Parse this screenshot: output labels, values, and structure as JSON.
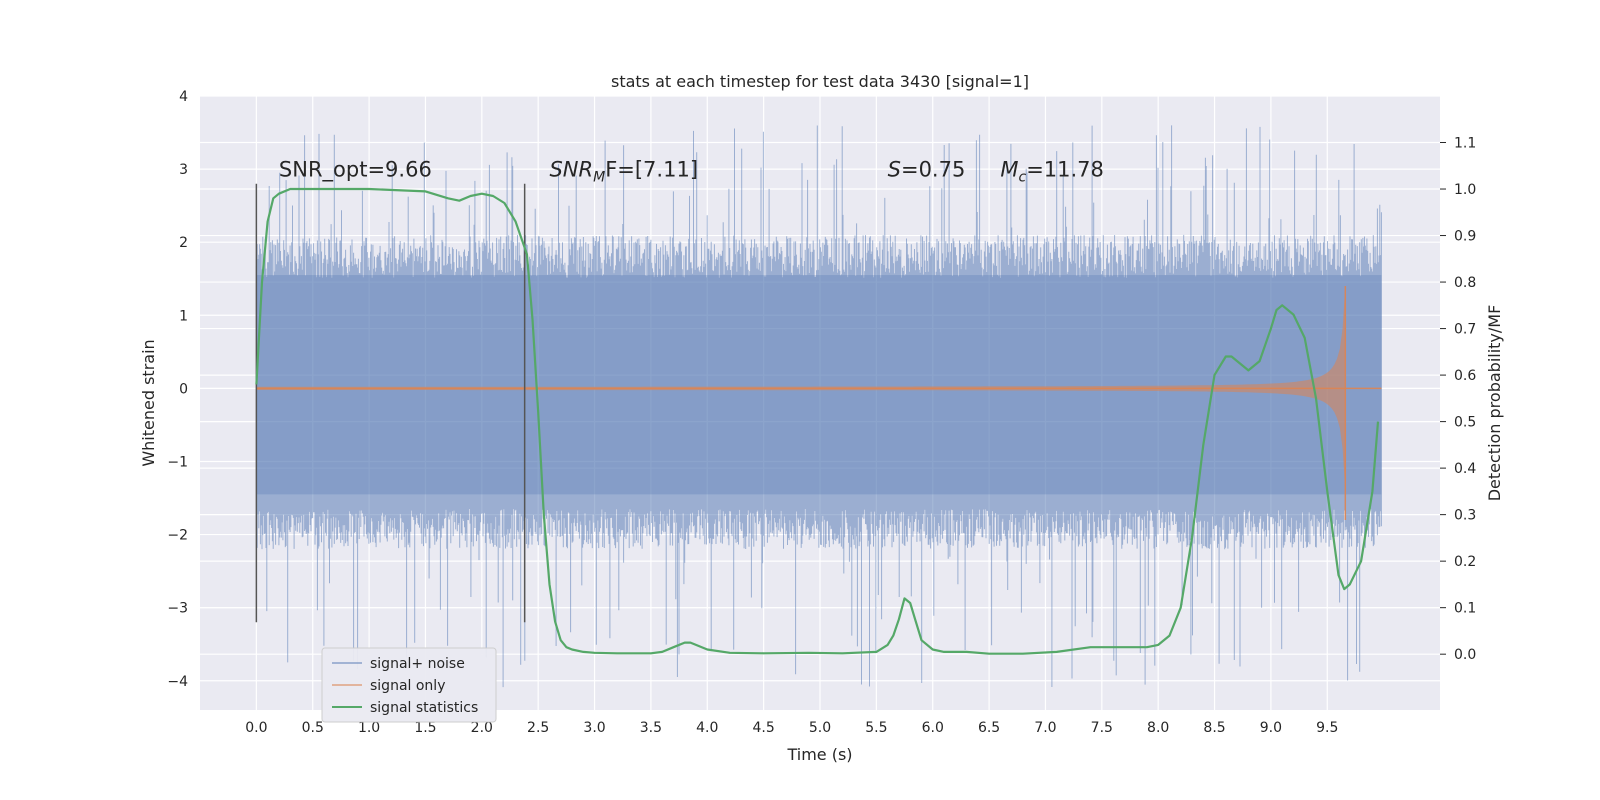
{
  "chart_data": {
    "type": "line",
    "title": "stats at each timestep for test data 3430 [signal=1]",
    "xlabel": "Time (s)",
    "ylabel": "Whitened strain",
    "y2label": "Detection probability/MF",
    "xlim": [
      -0.5,
      10.5
    ],
    "ylim": [
      -4.4,
      4.0
    ],
    "y2lim": [
      -0.12,
      1.2
    ],
    "xticks": [
      "0.0",
      "0.5",
      "1.0",
      "1.5",
      "2.0",
      "2.5",
      "3.0",
      "3.5",
      "4.0",
      "4.5",
      "5.0",
      "5.5",
      "6.0",
      "6.5",
      "7.0",
      "7.5",
      "8.0",
      "8.5",
      "9.0",
      "9.5"
    ],
    "yticks": [
      "4",
      "3",
      "2",
      "1",
      "0",
      "−1",
      "−2",
      "−3",
      "−4"
    ],
    "y2ticks": [
      "1.1",
      "1.0",
      "0.9",
      "0.8",
      "0.7",
      "0.6",
      "0.5",
      "0.4",
      "0.3",
      "0.2",
      "0.1",
      "0.0"
    ],
    "grid": true,
    "legend_position": "lower-left",
    "colors": {
      "background": "#eaeaf2",
      "grid": "#ffffff",
      "noise": "#4c72b0",
      "signal": "#dd8452",
      "stats": "#55a868",
      "vline": "#555555"
    },
    "series": [
      {
        "name": "signal+ noise",
        "style": "dense noise band",
        "x_range": [
          0.0,
          9.98
        ],
        "band_min": -2.2,
        "band_max": 2.1,
        "spike_range": [
          -4.1,
          3.6
        ]
      },
      {
        "name": "signal only",
        "style": "chirp",
        "x_range": [
          0.0,
          9.66
        ],
        "peak_amplitude": 1.4,
        "merger_time": 9.66
      },
      {
        "name": "signal statistics",
        "axis": "right",
        "x": [
          0.0,
          0.05,
          0.1,
          0.15,
          0.2,
          0.3,
          0.5,
          1.0,
          1.5,
          1.7,
          1.8,
          1.9,
          2.0,
          2.1,
          2.2,
          2.3,
          2.4,
          2.45,
          2.5,
          2.55,
          2.6,
          2.65,
          2.7,
          2.75,
          2.8,
          2.9,
          3.0,
          3.2,
          3.5,
          3.6,
          3.7,
          3.8,
          3.85,
          3.9,
          4.0,
          4.2,
          4.5,
          4.9,
          5.2,
          5.5,
          5.6,
          5.65,
          5.7,
          5.75,
          5.8,
          5.85,
          5.9,
          6.0,
          6.1,
          6.3,
          6.5,
          6.8,
          7.1,
          7.4,
          7.7,
          7.9,
          8.0,
          8.1,
          8.2,
          8.3,
          8.4,
          8.5,
          8.6,
          8.65,
          8.7,
          8.8,
          8.9,
          9.0,
          9.05,
          9.1,
          9.2,
          9.3,
          9.4,
          9.5,
          9.6,
          9.65,
          9.7,
          9.8,
          9.9,
          9.95
        ],
        "y": [
          0.58,
          0.8,
          0.93,
          0.98,
          0.99,
          1.0,
          1.0,
          1.0,
          0.995,
          0.98,
          0.975,
          0.985,
          0.99,
          0.985,
          0.97,
          0.93,
          0.86,
          0.72,
          0.52,
          0.3,
          0.15,
          0.07,
          0.03,
          0.015,
          0.01,
          0.005,
          0.003,
          0.002,
          0.002,
          0.005,
          0.015,
          0.025,
          0.025,
          0.02,
          0.01,
          0.003,
          0.002,
          0.003,
          0.002,
          0.005,
          0.02,
          0.04,
          0.075,
          0.12,
          0.11,
          0.07,
          0.03,
          0.01,
          0.005,
          0.005,
          0.001,
          0.001,
          0.005,
          0.015,
          0.015,
          0.015,
          0.02,
          0.04,
          0.1,
          0.25,
          0.45,
          0.6,
          0.64,
          0.64,
          0.63,
          0.61,
          0.63,
          0.7,
          0.74,
          0.75,
          0.73,
          0.68,
          0.55,
          0.35,
          0.17,
          0.14,
          0.15,
          0.2,
          0.35,
          0.5
        ]
      }
    ],
    "vlines": [
      0.0,
      2.38
    ],
    "vline_range": [
      -3.2,
      2.8
    ],
    "annotations": [
      {
        "name": "snr-opt",
        "text": "SNR_opt=9.66",
        "x": 0.2,
        "y": 2.9
      },
      {
        "name": "snr-mf",
        "text": "SNR",
        "sub": "M",
        "rest": "F=[7.11]",
        "italic_prefix": true,
        "x": 2.6,
        "y": 2.9
      },
      {
        "name": "s-value",
        "text": "S",
        "rest": "=0.75",
        "italic_prefix": true,
        "x": 5.6,
        "y": 2.9
      },
      {
        "name": "chirp-mass",
        "text": "M",
        "sub": "c",
        "rest": "=11.78",
        "italic_prefix": true,
        "x": 6.6,
        "y": 2.9
      }
    ]
  }
}
